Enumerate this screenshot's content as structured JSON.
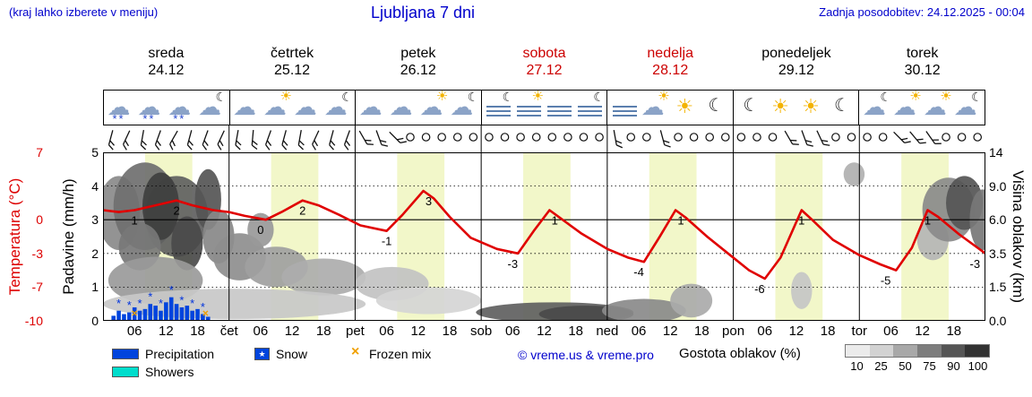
{
  "header": {
    "hint": "(kraj lahko izberete v meniju)",
    "title": "Ljubljana 7 dni",
    "updated": "Zadnja posodobitev: 24.12.2025 - 00:04"
  },
  "days": [
    {
      "name": "sreda",
      "date": "24.12",
      "weekend": false,
      "icons": [
        "snow-cloud",
        "snow-cloud",
        "snow-cloud",
        "cloud-moon"
      ]
    },
    {
      "name": "četrtek",
      "date": "25.12",
      "weekend": false,
      "icons": [
        "cloud",
        "cloud-sun",
        "cloud",
        "cloud-moon"
      ]
    },
    {
      "name": "petek",
      "date": "26.12",
      "weekend": false,
      "icons": [
        "cloud",
        "cloud",
        "cloud-sun",
        "cloud-moon"
      ]
    },
    {
      "name": "sobota",
      "date": "27.12",
      "weekend": true,
      "icons": [
        "fog-moon",
        "fog-sun",
        "fog",
        "fog-moon"
      ]
    },
    {
      "name": "nedelja",
      "date": "28.12",
      "weekend": true,
      "icons": [
        "fog",
        "cloud-sun",
        "sun",
        "moon"
      ]
    },
    {
      "name": "ponedeljek",
      "date": "29.12",
      "weekend": false,
      "icons": [
        "moon",
        "sun",
        "sun",
        "moon"
      ]
    },
    {
      "name": "torek",
      "date": "30.12",
      "weekend": false,
      "icons": [
        "cloud-moon",
        "cloud-sun",
        "cloud-sun",
        "cloud-moon"
      ]
    }
  ],
  "axes": {
    "temp_label": "Temperatura (°C)",
    "temp_ticks": [
      {
        "v": "7",
        "u": 5
      },
      {
        "v": "0",
        "u": 3
      },
      {
        "v": "-3",
        "u": 2
      },
      {
        "v": "-7",
        "u": 1
      },
      {
        "v": "-10",
        "u": 0
      }
    ],
    "precip_label": "Padavine (mm/h)",
    "precip_ticks": [
      {
        "v": "5",
        "u": 5
      },
      {
        "v": "4",
        "u": 4
      },
      {
        "v": "3",
        "u": 3
      },
      {
        "v": "2",
        "u": 2
      },
      {
        "v": "1",
        "u": 1
      },
      {
        "v": "0",
        "u": 0
      }
    ],
    "cloud_label": "Višina oblakov (km)",
    "cloud_ticks": [
      {
        "v": "14",
        "u": 5
      },
      {
        "v": "9.0",
        "u": 4
      },
      {
        "v": "6.0",
        "u": 3
      },
      {
        "v": "3.5",
        "u": 2
      },
      {
        "v": "1.5",
        "u": 1
      },
      {
        "v": "0.0",
        "u": 0
      }
    ],
    "hour_ticks": [
      "06",
      "12",
      "18"
    ],
    "day_abbrs": [
      "čet",
      "pet",
      "sob",
      "ned",
      "pon",
      "tor"
    ]
  },
  "chart_data": {
    "type": "line",
    "title": "7-day meteogram for Ljubljana (24.12–30.12)",
    "x_axis": "hours from 24.12 00:00, 24 h per day, range 0–168",
    "y_axis_left_temperature": "nonlinear °C scale: 7→5u, 0→3u, -3→2u, -7→1u, -10→0u",
    "y_axis_left_precipitation_mmh": [
      0,
      5
    ],
    "y_axis_right_cloud_height_km": [
      "0.0",
      "1.5",
      "3.5",
      "6.0",
      "9.0",
      "14"
    ],
    "temperature": {
      "unit": "°C",
      "points": [
        [
          0,
          1
        ],
        [
          3,
          0.8
        ],
        [
          6,
          1
        ],
        [
          10,
          1.5
        ],
        [
          14,
          2
        ],
        [
          17,
          1.5
        ],
        [
          21,
          1
        ],
        [
          24,
          0.8
        ],
        [
          27,
          0.4
        ],
        [
          31,
          0
        ],
        [
          34,
          0.8
        ],
        [
          38,
          2
        ],
        [
          41,
          1.5
        ],
        [
          45,
          0.5
        ],
        [
          49,
          -0.5
        ],
        [
          54,
          -1
        ],
        [
          57,
          0.5
        ],
        [
          61,
          3
        ],
        [
          63,
          2.2
        ],
        [
          66,
          0.3
        ],
        [
          70,
          -1.6
        ],
        [
          75,
          -2.6
        ],
        [
          79,
          -3
        ],
        [
          82,
          -1
        ],
        [
          85,
          1
        ],
        [
          87,
          0.2
        ],
        [
          91,
          -1.2
        ],
        [
          96,
          -2.6
        ],
        [
          100,
          -3.5
        ],
        [
          103,
          -4
        ],
        [
          106,
          -1.5
        ],
        [
          109,
          1
        ],
        [
          111,
          0.2
        ],
        [
          115,
          -1.5
        ],
        [
          119,
          -3
        ],
        [
          123,
          -5
        ],
        [
          126,
          -6
        ],
        [
          129,
          -3.5
        ],
        [
          133,
          1
        ],
        [
          135,
          0
        ],
        [
          139,
          -1.8
        ],
        [
          144,
          -3.2
        ],
        [
          148,
          -4.3
        ],
        [
          151,
          -5
        ],
        [
          154,
          -2.5
        ],
        [
          157,
          1
        ],
        [
          159,
          0.3
        ],
        [
          163,
          -1.3
        ],
        [
          168,
          -3
        ]
      ],
      "labels": [
        [
          6,
          "1",
          1
        ],
        [
          14,
          "2",
          2
        ],
        [
          30,
          "0",
          0
        ],
        [
          38,
          "2",
          2
        ],
        [
          54,
          "-1",
          -1
        ],
        [
          62,
          "3",
          3
        ],
        [
          78,
          "-3",
          -3
        ],
        [
          86,
          "1",
          1
        ],
        [
          102,
          "-4",
          -4
        ],
        [
          110,
          "1",
          1
        ],
        [
          125,
          "-6",
          -6
        ],
        [
          133,
          "1",
          1
        ],
        [
          149,
          "-5",
          -5
        ],
        [
          157,
          "1",
          1
        ],
        [
          166,
          "-3",
          -3
        ]
      ]
    },
    "precipitation": {
      "unit": "mm/h",
      "bars": [
        [
          2,
          0.15
        ],
        [
          3,
          0.3
        ],
        [
          4,
          0.2
        ],
        [
          5,
          0.25
        ],
        [
          6,
          0.4
        ],
        [
          7,
          0.3
        ],
        [
          8,
          0.35
        ],
        [
          9,
          0.5
        ],
        [
          10,
          0.45
        ],
        [
          11,
          0.3
        ],
        [
          12,
          0.55
        ],
        [
          13,
          0.7
        ],
        [
          14,
          0.5
        ],
        [
          15,
          0.4
        ],
        [
          16,
          0.45
        ],
        [
          17,
          0.3
        ],
        [
          18,
          0.35
        ],
        [
          19,
          0.2
        ],
        [
          20,
          0.12
        ]
      ]
    },
    "snow_marks": [
      [
        3,
        0.5
      ],
      [
        5,
        0.45
      ],
      [
        7,
        0.5
      ],
      [
        9,
        0.7
      ],
      [
        11,
        0.5
      ],
      [
        13,
        0.9
      ],
      [
        15,
        0.6
      ],
      [
        17,
        0.5
      ],
      [
        19,
        0.4
      ]
    ],
    "frozen_mix_marks": [
      [
        6,
        0.22
      ],
      [
        19.5,
        0.22
      ]
    ],
    "daylight_bands": [
      [
        8,
        17
      ],
      [
        32,
        41
      ],
      [
        56,
        65
      ],
      [
        80,
        89
      ],
      [
        104,
        113
      ],
      [
        128,
        137
      ],
      [
        152,
        161
      ]
    ],
    "cloud_blobs": [
      [
        3,
        3.2,
        4,
        1.1,
        "#8a8a8a"
      ],
      [
        8,
        3.4,
        6,
        1.3,
        "#6f6f6f"
      ],
      [
        14,
        3.1,
        6,
        1.2,
        "#5f5f5f"
      ],
      [
        11,
        3.4,
        3.5,
        1.0,
        "#3f3f3f"
      ],
      [
        16,
        2.3,
        3,
        0.8,
        "#4a4a4a"
      ],
      [
        7,
        2.2,
        4,
        0.7,
        "#777777"
      ],
      [
        20,
        3.6,
        2.5,
        0.9,
        "#555555"
      ],
      [
        22,
        2.5,
        3,
        0.8,
        "#888888"
      ],
      [
        10,
        1.2,
        9,
        0.7,
        "#9a9a9a"
      ],
      [
        26,
        1.9,
        5,
        0.7,
        "#8e8e8e"
      ],
      [
        33,
        1.6,
        6,
        0.6,
        "#a0a0a0"
      ],
      [
        30,
        2.7,
        2.5,
        0.5,
        "#999999"
      ],
      [
        42,
        1.3,
        8,
        0.55,
        "#adadad"
      ],
      [
        55,
        1.1,
        7,
        0.5,
        "#c2c2c2"
      ],
      [
        25,
        0.5,
        25,
        0.45,
        "#c8c8c8"
      ],
      [
        62,
        0.6,
        10,
        0.4,
        "#d5d5d5"
      ],
      [
        86,
        0.25,
        15,
        0.3,
        "#606060"
      ],
      [
        92,
        0.2,
        9,
        0.25,
        "#4a4a4a"
      ],
      [
        103,
        0.3,
        8,
        0.35,
        "#8a8a8a"
      ],
      [
        112,
        0.6,
        4,
        0.5,
        "#aaaaaa"
      ],
      [
        133,
        0.9,
        2,
        0.55,
        "#c5c5c5"
      ],
      [
        143,
        4.35,
        2,
        0.35,
        "#b0b0b0"
      ],
      [
        158,
        2.4,
        3,
        0.6,
        "#b5b5b5"
      ],
      [
        161,
        3.3,
        5,
        0.95,
        "#8a8a8a"
      ],
      [
        164,
        3.5,
        3.5,
        0.8,
        "#555555"
      ],
      [
        167.5,
        3.0,
        2.5,
        0.9,
        "#777777"
      ]
    ],
    "wind": [
      "b105",
      "b115",
      "b100",
      "b110",
      "b120",
      "b105",
      "b110",
      "b115",
      "b100",
      "b95",
      "b110",
      "b105",
      "b100",
      "b115",
      "b105",
      "b110",
      "b60",
      "b70",
      "b45",
      "c",
      "c",
      "c",
      "c",
      "c",
      "c",
      "c",
      "c",
      "c",
      "c",
      "c",
      "c",
      "c",
      "b80",
      "c",
      "c",
      "b75",
      "c",
      "c",
      "c",
      "c",
      "c",
      "c",
      "c",
      "b60",
      "b70",
      "b65",
      "c",
      "c",
      "c",
      "c",
      "b45",
      "b50",
      "b55",
      "c",
      "c",
      "c"
    ]
  },
  "legend": {
    "precipitation": "Precipitation",
    "snow": "Snow",
    "frozen_mix": "Frozen mix",
    "showers": "Showers",
    "credit": "© vreme.us & vreme.pro",
    "cloud_density_label": "Gostota oblakov (%)",
    "cloud_density_ticks": [
      "10",
      "25",
      "50",
      "75",
      "90",
      "100"
    ],
    "cloud_density_colors": [
      "#ebebeb",
      "#d2d2d2",
      "#a8a8a8",
      "#7d7d7d",
      "#555555",
      "#323232"
    ]
  },
  "glyphs": {
    "cloud": "☁",
    "sun": "☀",
    "moon": "☾",
    "star": "★",
    "frozen": "×",
    "snow": "**",
    "calm": "○"
  },
  "colors": {
    "blue_text": "#0000cc",
    "red_text": "#dd0000",
    "temp_line": "#e00000",
    "precipitation": "#0044dd",
    "snow": "#0033dd",
    "showers": "#00ddcc",
    "frozen_mix": "#f0a000",
    "daylight_band": "#f2f7c9",
    "weekend": "#cc0000"
  }
}
